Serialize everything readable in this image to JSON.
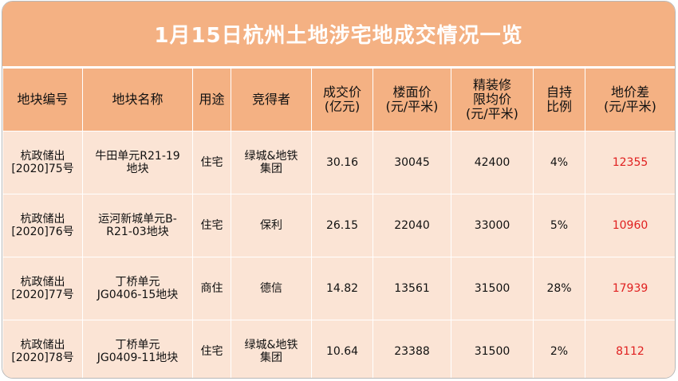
{
  "title": "1月15日杭州土地涉宅地成交情况一览",
  "headers": [
    "地块编号",
    "地块名称",
    "用途",
    "竞得者",
    "成交价\n(亿元)",
    "楼面价\n(元/平米)",
    "精装修\n限均价\n(元/平米)",
    "自持\n比例",
    "地价差\n(元/平米)"
  ],
  "rows": [
    {
      "code": "杭政储出\n[2020]75号",
      "name": "牛田单元R21-19\n地块",
      "use": "住宅",
      "winner": "绿城&地铁\n集团",
      "price": "30.16",
      "floor_price": "30045",
      "cap_price": "42400",
      "hold": "4%",
      "diff": "12355"
    },
    {
      "code": "杭政储出\n[2020]76号",
      "name": "运河新城单元B-\nR21-03地块",
      "use": "住宅",
      "winner": "保利",
      "price": "26.15",
      "floor_price": "22040",
      "cap_price": "33000",
      "hold": "5%",
      "diff": "10960"
    },
    {
      "code": "杭政储出\n[2020]77号",
      "name": "丁桥单元\nJG0406-15地块",
      "use": "商住",
      "winner": "德信",
      "price": "14.82",
      "floor_price": "13561",
      "cap_price": "31500",
      "hold": "28%",
      "diff": "17939"
    },
    {
      "code": "杭政储出\n[2020]78号",
      "name": "丁桥单元\nJG0409-11地块",
      "use": "住宅",
      "winner": "绿城&地铁\n集团",
      "price": "10.64",
      "floor_price": "23388",
      "cap_price": "31500",
      "hold": "2%",
      "diff": "8112"
    }
  ]
}
